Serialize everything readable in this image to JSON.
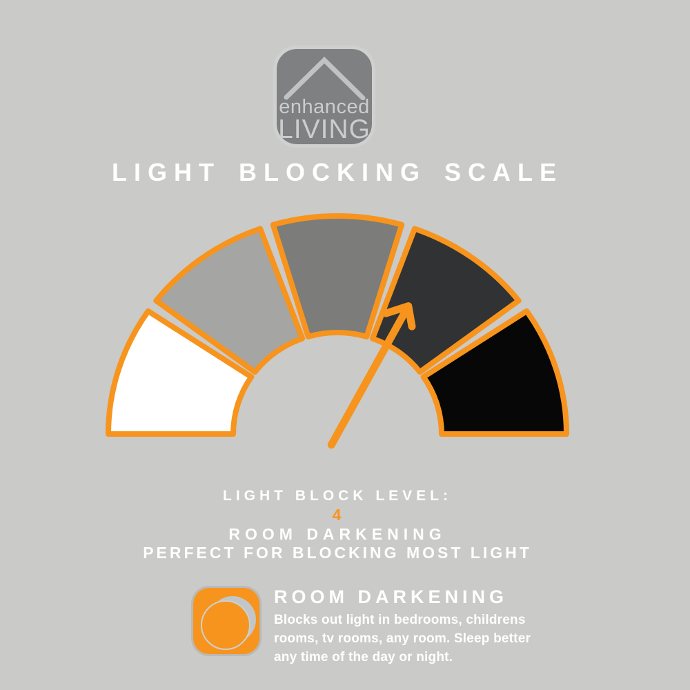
{
  "colors": {
    "background": "#cacac9",
    "accent_orange": "#f7941d",
    "text_white": "#ffffff",
    "logo_square_gray": "#7f8081",
    "logo_text_gray": "#cbcdce"
  },
  "logo": {
    "icon": "roof-icon",
    "line1": "enhanced",
    "line2": "LIVING"
  },
  "title": "LIGHT BLOCKING SCALE",
  "chart_data": {
    "type": "gauge",
    "title": "LIGHT BLOCKING SCALE",
    "description": "Semicircular 5-segment light blocking scale from level 1 (white, least blocking) to level 5 (black, most blocking); arrow needle points at level 4",
    "segments": [
      {
        "level": 1,
        "color": "#ffffff"
      },
      {
        "level": 2,
        "color": "#a5a5a3"
      },
      {
        "level": 3,
        "color": "#7c7c7a"
      },
      {
        "level": 4,
        "color": "#303234"
      },
      {
        "level": 5,
        "color": "#070707"
      }
    ],
    "pointer": {
      "level": 4,
      "angle_deg": 61
    },
    "layout": {
      "start_angle_deg": 180,
      "end_angle_deg": 0,
      "gap_deg": 3.4,
      "outline_color": "#f7941d",
      "outline_width": 8
    }
  },
  "level_panel": {
    "label": "LIGHT BLOCK LEVEL:",
    "value": "4",
    "name": "ROOM DARKENING",
    "description": "PERFECT FOR BLOCKING MOST LIGHT"
  },
  "info_card": {
    "icon": "moon-icon",
    "heading": "ROOM DARKENING",
    "body": "Blocks out light in bedrooms, childrens rooms, tv rooms, any room. Sleep better any time of the day or night."
  }
}
